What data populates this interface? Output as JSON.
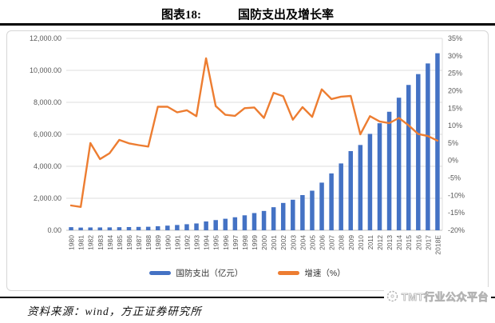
{
  "header": {
    "label": "图表18:",
    "title": "国防支出及增长率"
  },
  "chart_data": {
    "type": "bar",
    "subtype": "bar+line combo, dual axis",
    "title": "国防支出及增长率",
    "categories": [
      "1980",
      "1981",
      "1982",
      "1983",
      "1984",
      "1985",
      "1986",
      "1987",
      "1988",
      "1989",
      "1990",
      "1991",
      "1992",
      "1993",
      "1994",
      "1995",
      "1996",
      "1997",
      "1998",
      "1999",
      "2000",
      "2001",
      "2002",
      "2003",
      "2004",
      "2005",
      "2006",
      "2007",
      "2008",
      "2009",
      "2010",
      "2011",
      "2012",
      "2013",
      "2014",
      "2015",
      "2016",
      "2017",
      "2018E"
    ],
    "series": [
      {
        "name": "国防支出（亿元）",
        "type": "bar",
        "axis": "left",
        "color": "#4472C4",
        "values": [
          194,
          168,
          176,
          177,
          181,
          192,
          201,
          210,
          218,
          251,
          290,
          330,
          378,
          426,
          551,
          637,
          720,
          813,
          935,
          1076,
          1208,
          1442,
          1708,
          1908,
          2200,
          2475,
          2979,
          3555,
          4179,
          4951,
          5333,
          6028,
          6692,
          7411,
          8290,
          9088,
          9766,
          10432,
          11070
        ]
      },
      {
        "name": "增速（%）",
        "type": "line",
        "axis": "right",
        "color": "#ED7D31",
        "values": [
          -12.9,
          -13.3,
          5.0,
          0.4,
          2.1,
          5.9,
          4.9,
          4.4,
          4.0,
          15.4,
          15.4,
          13.8,
          14.4,
          12.7,
          29.3,
          15.6,
          13.1,
          12.8,
          15.0,
          15.2,
          12.2,
          19.4,
          18.4,
          11.7,
          15.3,
          12.5,
          20.4,
          17.6,
          18.3,
          18.5,
          7.5,
          12.7,
          11.2,
          10.7,
          12.2,
          10.1,
          7.6,
          7.0,
          5.7
        ]
      }
    ],
    "left_axis": {
      "min": 0,
      "max": 12000,
      "tick_labels": [
        "12,000.00",
        "10,000.00",
        "8,000.00",
        "6,000.00",
        "4,000.00",
        "2,000.00",
        "0.00"
      ]
    },
    "right_axis": {
      "min": -20,
      "max": 35,
      "tick_labels": [
        "35%",
        "30%",
        "25%",
        "20%",
        "15%",
        "10%",
        "5%",
        "0%",
        "-5%",
        "-10%",
        "-15%",
        "-20%"
      ]
    },
    "legend": [
      "国防支出（亿元）",
      "增速（%）"
    ],
    "legend_position": "bottom",
    "grid": true
  },
  "colors": {
    "bar": "#4472C4",
    "line": "#ED7D31",
    "grid": "#DCDCDC",
    "axis_line": "#BFBFBF",
    "tick_text": "#595959",
    "rule": "#000000"
  },
  "footer": {
    "source": "资料来源：wind，方正证券研究所",
    "watermark": "TMT行业公众平台"
  }
}
